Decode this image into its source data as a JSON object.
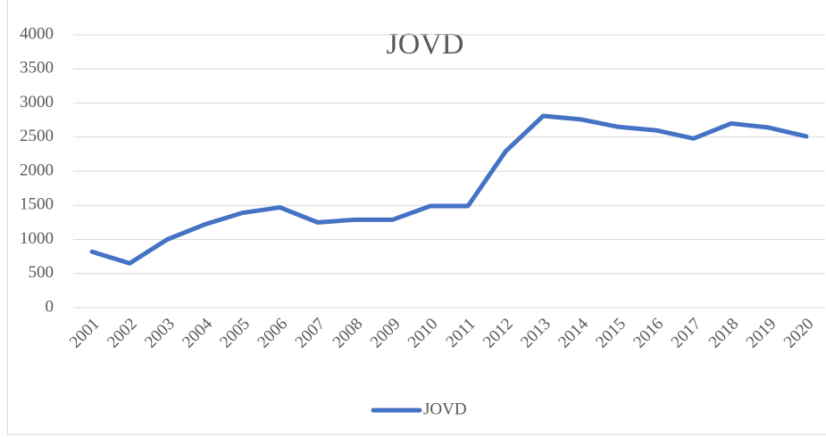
{
  "chart_data": {
    "type": "line",
    "title": "JOVD",
    "categories": [
      "2001",
      "2002",
      "2003",
      "2004",
      "2005",
      "2006",
      "2007",
      "2008",
      "2009",
      "2010",
      "2011",
      "2012",
      "2013",
      "2014",
      "2015",
      "2016",
      "2017",
      "2018",
      "2019",
      "2020"
    ],
    "series": [
      {
        "name": "JOVD",
        "color": "#4472c4",
        "values": [
          820,
          650,
          1000,
          1220,
          1390,
          1470,
          1250,
          1290,
          1290,
          1490,
          1490,
          2290,
          2810,
          2760,
          2650,
          2600,
          2480,
          2700,
          2640,
          2510
        ]
      }
    ],
    "ylim": [
      0,
      4000
    ],
    "yticks": [
      0,
      500,
      1000,
      1500,
      2000,
      2500,
      3000,
      3500,
      4000
    ],
    "grid": true,
    "legend": "bottom"
  }
}
